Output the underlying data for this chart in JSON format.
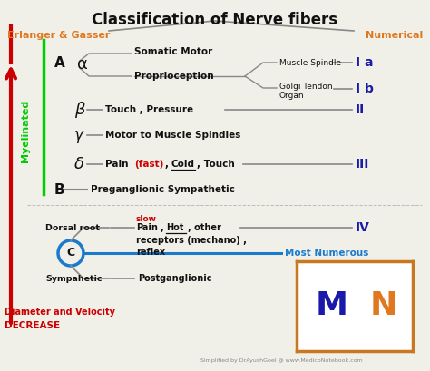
{
  "title": "Classification of Nerve fibers",
  "bg_color": "#f0f0e8",
  "erlanger_label": "Erlanger & Gasser",
  "numerical_label": "Numerical",
  "orange_color": "#e07820",
  "blue_dark": "#1a1aaa",
  "red_color": "#cc0000",
  "green_color": "#00cc00",
  "blue_color": "#1a7acc",
  "gray_color": "#888888",
  "black_color": "#111111",
  "watermark": "Simplified by DrAyushGoel @ www.MedicoNotebook.com"
}
